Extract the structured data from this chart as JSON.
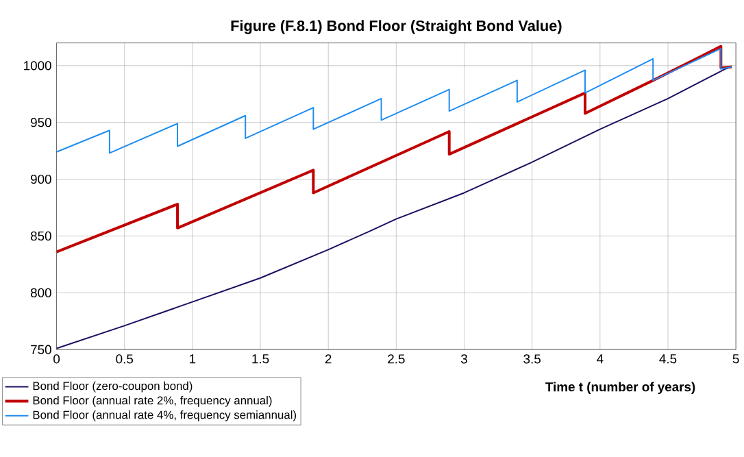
{
  "chart_data": {
    "type": "line",
    "title": "Figure (F.8.1) Bond Floor (Straight Bond Value)",
    "xlabel": "Time t (number of years)",
    "xlim": [
      0,
      5
    ],
    "ylim": [
      750,
      1020
    ],
    "xticks": [
      0,
      0.5,
      1,
      1.5,
      2,
      2.5,
      3,
      3.5,
      4,
      4.5,
      5
    ],
    "yticks": [
      750,
      800,
      850,
      900,
      950,
      1000
    ],
    "grid": true,
    "legend": "bottom left",
    "marker": "none",
    "line_style": "solid",
    "series": [
      {
        "name": "Bond Floor (zero-coupon bond)",
        "color": "#1a1060",
        "x": [
          0,
          0.5,
          1,
          1.5,
          2,
          2.3,
          2.5,
          3,
          3.5,
          4,
          4.5,
          4.92,
          4.97
        ],
        "values": [
          751,
          771,
          792,
          813,
          838,
          854,
          865,
          888,
          915,
          944,
          971,
          997,
          999
        ]
      },
      {
        "name": "Bond Floor (annual rate 2%, frequency annual)",
        "color": "#c00000",
        "x": [
          0,
          0.89,
          0.89,
          1.89,
          1.89,
          2.89,
          2.89,
          3.89,
          3.89,
          4.39,
          4.89,
          4.89,
          4.97
        ],
        "values": [
          836,
          878,
          857,
          908,
          888,
          942,
          922,
          976,
          958,
          987,
          1017,
          998,
          999
        ]
      },
      {
        "name": "Bond Floor (annual rate 4%, frequency semiannual)",
        "color": "#1e8cf0",
        "x": [
          0,
          0.39,
          0.39,
          0.89,
          0.89,
          1.39,
          1.39,
          1.89,
          1.89,
          2.39,
          2.39,
          2.89,
          2.89,
          3.39,
          3.39,
          3.89,
          3.89,
          4.39,
          4.39,
          4.89,
          4.89,
          4.97
        ],
        "values": [
          924,
          943,
          923,
          949,
          929,
          956,
          936,
          963,
          944,
          971,
          952,
          979,
          960,
          987,
          968,
          996,
          976,
          1006,
          987,
          1015,
          997,
          999
        ]
      }
    ]
  }
}
